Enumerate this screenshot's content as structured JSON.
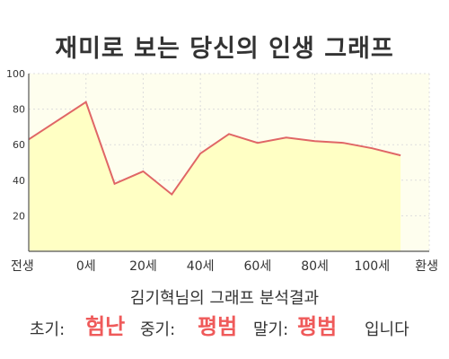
{
  "chart_data": {
    "type": "area",
    "title": "재미로 보는 당신의 인생 그래프",
    "categories": [
      "전생",
      "0세",
      "20세",
      "40세",
      "60세",
      "80세",
      "100세",
      "환생"
    ],
    "x": [
      -20,
      0,
      10,
      20,
      30,
      40,
      50,
      60,
      70,
      80,
      90,
      100,
      110
    ],
    "values": [
      63,
      84,
      38,
      45,
      32,
      55,
      66,
      61,
      64,
      62,
      61,
      58,
      54
    ],
    "xlim": [
      -20,
      120
    ],
    "ylim": [
      0,
      100
    ],
    "yticks": [
      20,
      40,
      60,
      80,
      100
    ],
    "grid": true,
    "colors": {
      "line": "#e06666",
      "fill": "#ffffc4",
      "plot_bg": "#fefeee",
      "grid": "#dddddd"
    }
  },
  "summary": {
    "title": "김기혁님의 그래프 분석결과",
    "early_label": "초기:",
    "early_value": "험난",
    "mid_label": "중기:",
    "mid_value": "평범",
    "late_label": "말기:",
    "late_value": "평범",
    "suffix": "입니다"
  }
}
